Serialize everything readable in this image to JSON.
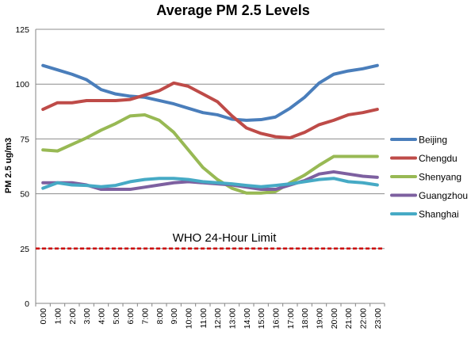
{
  "chart_data": {
    "type": "line",
    "title": "Average PM 2.5 Levels",
    "xlabel": "",
    "ylabel": "PM 2.5 ug/m3",
    "ylim": [
      0,
      125
    ],
    "yticks": [
      0,
      25,
      50,
      75,
      100,
      125
    ],
    "grid": true,
    "legend_position": "right",
    "categories": [
      "0:00",
      "1:00",
      "2:00",
      "3:00",
      "4:00",
      "5:00",
      "6:00",
      "7:00",
      "8:00",
      "9:00",
      "10:00",
      "11:00",
      "12:00",
      "13:00",
      "14:00",
      "15:00",
      "16:00",
      "17:00",
      "18:00",
      "19:00",
      "20:00",
      "21:00",
      "22:00",
      "23:00"
    ],
    "series": [
      {
        "name": "Beijing",
        "color": "#4a7ebb",
        "values": [
          108.5,
          106.5,
          104.5,
          102,
          97.5,
          95.5,
          94.5,
          94,
          92.5,
          91,
          89,
          87,
          86,
          84,
          83.5,
          83.8,
          85,
          89,
          94,
          100.5,
          104.5,
          106,
          107,
          108.5
        ]
      },
      {
        "name": "Chengdu",
        "color": "#be4b48",
        "values": [
          88.5,
          91.5,
          91.5,
          92.5,
          92.5,
          92.5,
          93,
          95,
          97,
          100.5,
          99,
          95.5,
          92,
          85.5,
          80,
          77.5,
          76,
          75.5,
          78,
          81.5,
          83.5,
          86,
          87,
          88.5
        ]
      },
      {
        "name": "Shenyang",
        "color": "#98b954",
        "values": [
          70,
          69.5,
          72.5,
          75.5,
          79,
          82,
          85.5,
          86,
          83.5,
          78,
          70,
          62,
          56.5,
          52.5,
          50.3,
          50.3,
          51,
          55,
          58.5,
          63,
          67,
          67,
          67,
          67
        ]
      },
      {
        "name": "Guangzhou",
        "color": "#7d60a0",
        "values": [
          55,
          55,
          55,
          54,
          52,
          52,
          52,
          53,
          54,
          55,
          55.5,
          55,
          54.5,
          54,
          53,
          52,
          52,
          54,
          56,
          59,
          60,
          59,
          58,
          57.5
        ]
      },
      {
        "name": "Shanghai",
        "color": "#46aac5",
        "values": [
          52.5,
          55,
          54,
          53.8,
          53.2,
          53.8,
          55.5,
          56.5,
          57,
          57,
          56.5,
          55.5,
          55,
          54.5,
          53.8,
          53.2,
          53.8,
          54.5,
          55.5,
          56.5,
          57,
          55.5,
          55,
          54
        ]
      }
    ],
    "reference_lines": [
      {
        "label": "WHO 24-Hour Limit",
        "value": 25,
        "color": "#cc0000",
        "style": "dashed"
      }
    ]
  }
}
